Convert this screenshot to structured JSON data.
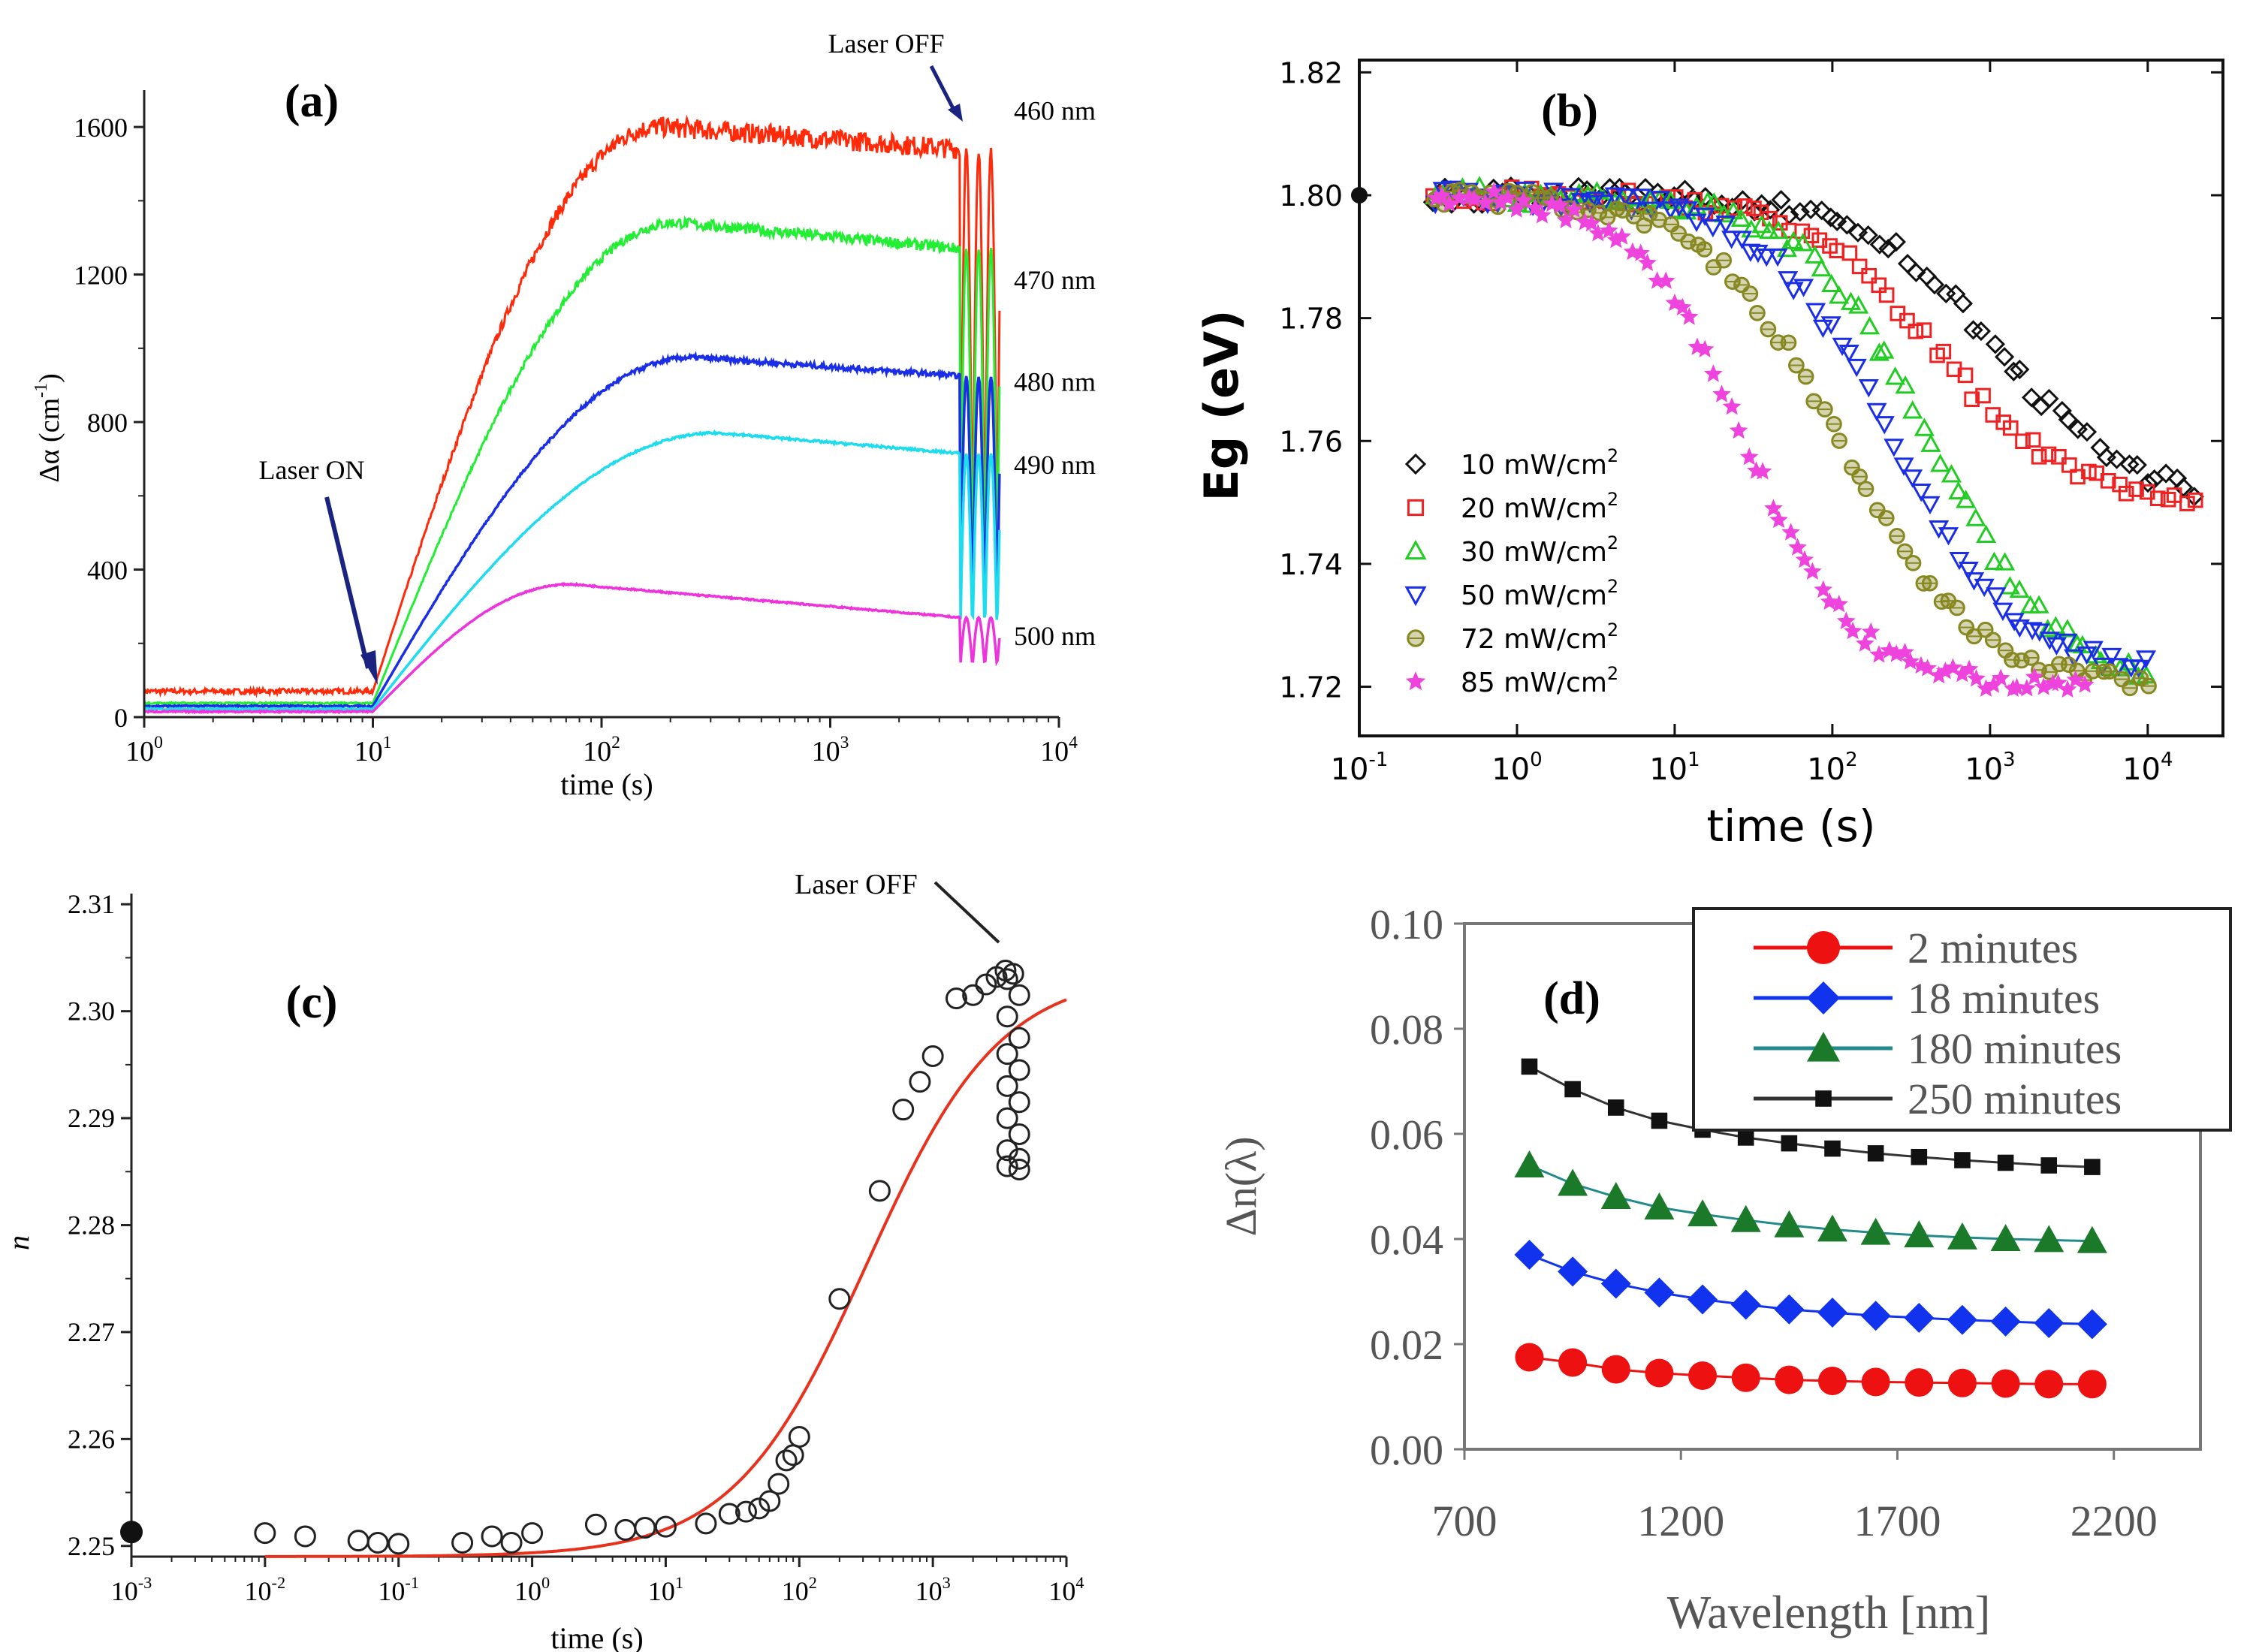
{
  "chart_data": [
    {
      "panel": "(a)",
      "type": "line",
      "xscale": "log",
      "xlim": [
        1,
        10000
      ],
      "ylim": [
        0,
        1700
      ],
      "xlabel": "time (s)",
      "ylabel_text": "Δα (cm",
      "ylabel_sup": "-1",
      "ylabel_close": ")",
      "xtick_values": [
        1,
        10,
        100,
        1000,
        10000
      ],
      "xtick_base": "10",
      "xtick_exps": [
        "0",
        "1",
        "2",
        "3",
        "4"
      ],
      "ytick_values": [
        0,
        400,
        800,
        1200,
        1600
      ],
      "ytick_labels": [
        "0",
        "400",
        "800",
        "1200",
        "1600"
      ],
      "annotations": {
        "laser_on": "Laser ON",
        "laser_off": "Laser OFF"
      },
      "laser_on_time": 10,
      "laser_off_time": 3700,
      "series": [
        {
          "name": "460 nm",
          "color": "#ff2a0a",
          "baseline": 70,
          "plateau_x": 190,
          "plateau_y": 1600,
          "end_y": 1540,
          "noise": 55
        },
        {
          "name": "470 nm",
          "color": "#22ee33",
          "baseline": 38,
          "plateau_x": 220,
          "plateau_y": 1340,
          "end_y": 1270,
          "noise": 30
        },
        {
          "name": "480 nm",
          "color": "#1a2ee8",
          "baseline": 30,
          "plateau_x": 260,
          "plateau_y": 975,
          "end_y": 925,
          "noise": 14
        },
        {
          "name": "490 nm",
          "color": "#1cdcee",
          "baseline": 22,
          "plateau_x": 330,
          "plateau_y": 770,
          "end_y": 715,
          "noise": 6
        },
        {
          "name": "500 nm",
          "color": "#ee33dd",
          "baseline": 15,
          "plateau_x": 75,
          "plateau_y": 360,
          "end_y": 270,
          "noise": 4
        }
      ]
    },
    {
      "panel": "(b)",
      "type": "scatter",
      "xscale": "log",
      "xlim": [
        0.1,
        30000
      ],
      "ylim": [
        1.712,
        1.822
      ],
      "xlabel": "time (s)",
      "ylabel": "Eg (eV)",
      "xtick_values": [
        0.1,
        1,
        10,
        100,
        1000,
        10000
      ],
      "xtick_base": "10",
      "xtick_exps": [
        "-1",
        "0",
        "1",
        "2",
        "3",
        "4"
      ],
      "ytick_values": [
        1.72,
        1.74,
        1.76,
        1.78,
        1.8,
        1.82
      ],
      "ytick_labels": [
        "1.72",
        "1.74",
        "1.76",
        "1.78",
        "1.80",
        "1.82"
      ],
      "initial_point": {
        "x": 0.1,
        "y": 1.8
      },
      "legend_unit": "mW/cm",
      "legend_unit_sup": "2",
      "series": [
        {
          "name": "10",
          "marker": "diamond",
          "color": "#111111",
          "y_start": 1.8,
          "y_end": 1.75,
          "t_mid": 1100,
          "width": 0.42,
          "x_max": 20000
        },
        {
          "name": "20",
          "marker": "square",
          "color": "#ee2222",
          "y_start": 1.8,
          "y_end": 1.75,
          "t_mid": 450,
          "width": 0.42,
          "x_max": 20000
        },
        {
          "name": "30",
          "marker": "triangle-up",
          "color": "#22cc22",
          "y_start": 1.8,
          "y_end": 1.72,
          "t_mid": 420,
          "width": 0.4,
          "x_max": 10000
        },
        {
          "name": "50",
          "marker": "triangle-down",
          "color": "#1a2ee8",
          "y_start": 1.8,
          "y_end": 1.722,
          "t_mid": 230,
          "width": 0.4,
          "x_max": 10000
        },
        {
          "name": "72",
          "marker": "circle-cross",
          "color": "#888822",
          "y_start": 1.8,
          "y_end": 1.72,
          "t_mid": 110,
          "width": 0.42,
          "x_max": 10000
        },
        {
          "name": "85",
          "marker": "star",
          "color": "#ee44dd",
          "y_start": 1.8,
          "y_end": 1.72,
          "t_mid": 28,
          "width": 0.35,
          "x_max": 4000
        }
      ]
    },
    {
      "panel": "(c)",
      "type": "scatter",
      "xscale": "log",
      "xlim": [
        0.001,
        10000
      ],
      "ylim": [
        2.249,
        2.311
      ],
      "xlabel": "time (s)",
      "ylabel": "n",
      "xtick_values": [
        0.001,
        0.01,
        0.1,
        1,
        10,
        100,
        1000,
        10000
      ],
      "xtick_base": "10",
      "xtick_exps": [
        "-3",
        "-2",
        "-1",
        "0",
        "1",
        "2",
        "3",
        "4"
      ],
      "ytick_values": [
        2.25,
        2.26,
        2.27,
        2.28,
        2.29,
        2.3,
        2.31
      ],
      "ytick_labels": [
        "2.25",
        "2.26",
        "2.27",
        "2.28",
        "2.29",
        "2.30",
        "2.31"
      ],
      "annotations": {
        "laser_off": "Laser OFF"
      },
      "initial_point": {
        "x": 0.001,
        "y": 2.2513
      },
      "fit": {
        "color": "#e8321e",
        "y0": 2.249,
        "y1": 2.3037,
        "t_mid": 320,
        "width": 0.5
      },
      "points_x": [
        0.01,
        0.02,
        0.05,
        0.07,
        0.1,
        0.3,
        0.5,
        0.7,
        1,
        3,
        5,
        7,
        10,
        20,
        30,
        40,
        50,
        60,
        70,
        80,
        90,
        100,
        200,
        400,
        600,
        800,
        1000,
        1500,
        2000,
        2500,
        3000,
        3500,
        4000
      ],
      "points_y": [
        2.2512,
        2.2509,
        2.2505,
        2.2503,
        2.2502,
        2.2503,
        2.2509,
        2.2503,
        2.2512,
        2.252,
        2.2515,
        2.2517,
        2.2518,
        2.2521,
        2.253,
        2.2532,
        2.2535,
        2.2542,
        2.2558,
        2.258,
        2.2585,
        2.2602,
        2.2731,
        2.2832,
        2.2908,
        2.2934,
        2.2958,
        2.3012,
        2.3015,
        2.3025,
        2.3032,
        2.3038,
        2.3035
      ],
      "decay_x": 4000,
      "decay_y": [
        2.303,
        2.3015,
        2.2995,
        2.2975,
        2.296,
        2.2945,
        2.293,
        2.2915,
        2.29,
        2.2885,
        2.287,
        2.2862,
        2.2855,
        2.2852
      ]
    },
    {
      "panel": "(d)",
      "type": "line",
      "xlim": [
        700,
        2400
      ],
      "ylim": [
        0,
        0.1
      ],
      "xlabel": "Wavelength [nm]",
      "ylabel": "Δn(λ)",
      "xtick_values": [
        700,
        1200,
        1700,
        2200
      ],
      "xtick_labels": [
        "700",
        "1200",
        "1700",
        "2200"
      ],
      "ytick_values": [
        0,
        0.02,
        0.04,
        0.06,
        0.08,
        0.1
      ],
      "ytick_labels": [
        "0.00",
        "0.02",
        "0.04",
        "0.06",
        "0.08",
        "0.10"
      ],
      "x": [
        850,
        950,
        1050,
        1150,
        1250,
        1350,
        1450,
        1550,
        1650,
        1750,
        1850,
        1950,
        2050,
        2150
      ],
      "series": [
        {
          "name": "2 minutes",
          "marker": "circle",
          "color": "#ee1111",
          "line": "#ee1111",
          "values": [
            0.0175,
            0.0165,
            0.0152,
            0.0145,
            0.014,
            0.0136,
            0.0132,
            0.013,
            0.0128,
            0.0127,
            0.0126,
            0.0125,
            0.0124,
            0.0124
          ]
        },
        {
          "name": "18 minutes",
          "marker": "diamond",
          "color": "#1133ee",
          "line": "#1133ee",
          "values": [
            0.037,
            0.0338,
            0.0315,
            0.0298,
            0.0285,
            0.0275,
            0.0266,
            0.026,
            0.0254,
            0.025,
            0.0246,
            0.0243,
            0.024,
            0.0238
          ]
        },
        {
          "name": "180 minutes",
          "marker": "triangle",
          "color": "#1a7a2a",
          "line": "#228a8a",
          "values": [
            0.054,
            0.0505,
            0.048,
            0.046,
            0.0447,
            0.0436,
            0.0426,
            0.0418,
            0.0412,
            0.0407,
            0.0403,
            0.04,
            0.0398,
            0.0396
          ]
        },
        {
          "name": "250 minutes",
          "marker": "square",
          "color": "#111111",
          "line": "#333333",
          "values": [
            0.0728,
            0.0685,
            0.065,
            0.0625,
            0.0608,
            0.0593,
            0.0582,
            0.0572,
            0.0563,
            0.0556,
            0.055,
            0.0545,
            0.054,
            0.0537
          ]
        }
      ]
    }
  ]
}
